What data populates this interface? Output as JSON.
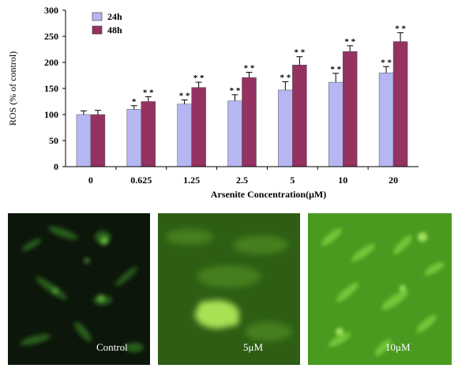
{
  "chart_data": {
    "type": "bar",
    "categories": [
      "0",
      "0.625",
      "1.25",
      "2.5",
      "5",
      "10",
      "20"
    ],
    "series": [
      {
        "name": "24h",
        "color": "#b6b6f2",
        "values": [
          100,
          110,
          120,
          126,
          147,
          162,
          180
        ],
        "errors": [
          7,
          7,
          8,
          12,
          16,
          17,
          12
        ],
        "marks": [
          "",
          "*",
          "* *",
          "* *",
          "* *",
          "* *",
          "* *"
        ]
      },
      {
        "name": "48h",
        "color": "#943261",
        "values": [
          100,
          125,
          152,
          171,
          195,
          221,
          240
        ],
        "errors": [
          8,
          9,
          10,
          10,
          16,
          11,
          17
        ],
        "marks": [
          "",
          "* *",
          "* *",
          "* *",
          "* *",
          "* *",
          "* *"
        ]
      }
    ],
    "ylim": [
      0,
      300
    ],
    "yticks": [
      "0",
      "50",
      "100",
      "150",
      "200",
      "250",
      "300"
    ],
    "ylabel": "ROS (% of control)",
    "xlabel": "Arsenite Concentration(μM)",
    "legend_position": "top-left"
  },
  "panels": [
    {
      "label": "Control",
      "tone": "dark"
    },
    {
      "label": "5μM",
      "tone": "medium"
    },
    {
      "label": "10μM",
      "tone": "bright"
    }
  ]
}
